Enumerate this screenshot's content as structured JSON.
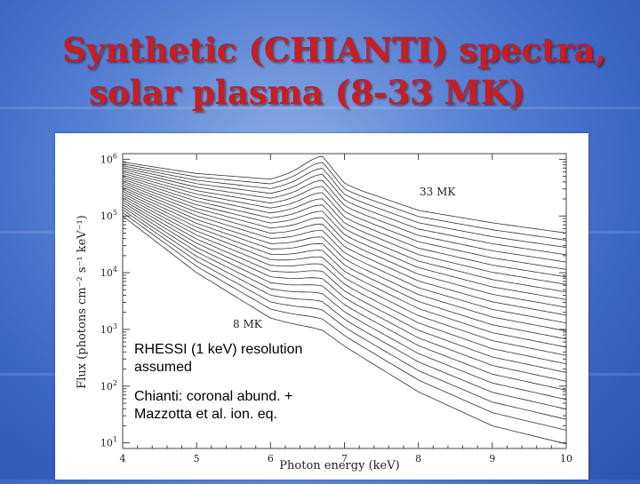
{
  "slide": {
    "title_line1": "Synthetic (CHIANTI) spectra,",
    "title_line2": "solar plasma (8-33 MK)"
  },
  "colors": {
    "title": "#d11a1a",
    "curve": "#333333",
    "background": "#4a74cc"
  },
  "annotations": {
    "resolution": [
      "RHESSI (1 keV) resolution",
      "assumed"
    ],
    "abundances": [
      "Chianti: coronal abund. +",
      "Mazzotta et al. ion. eq."
    ]
  },
  "chart_data": {
    "type": "line",
    "title": "",
    "xlabel": "Photon energy (keV)",
    "ylabel": "Flux (photons cm⁻² s⁻¹ keV⁻¹)",
    "xlim": [
      4,
      10
    ],
    "ylim_log10": [
      0.9,
      6.1
    ],
    "yscale": "log",
    "x_ticks": [
      "4",
      "5",
      "6",
      "7",
      "8",
      "9",
      "10"
    ],
    "y_ticks": [
      {
        "base": "10",
        "exp": "1"
      },
      {
        "base": "10",
        "exp": "2"
      },
      {
        "base": "10",
        "exp": "3"
      },
      {
        "base": "10",
        "exp": "4"
      },
      {
        "base": "10",
        "exp": "5"
      },
      {
        "base": "10",
        "exp": "6"
      }
    ],
    "curve_labels": {
      "hottest": "33 MK",
      "coolest": "8 MK"
    },
    "temperature_range_MK": [
      8,
      33
    ],
    "n_curves": 26,
    "note": "Family of thermal spectra; Fe line complex near 6.7 keV",
    "series": [
      {
        "name": "33 MK",
        "x": [
          4,
          5,
          6,
          6.7,
          7,
          8,
          9,
          10
        ],
        "log10_flux": [
          5.95,
          5.75,
          5.65,
          5.9,
          5.55,
          5.1,
          4.88,
          4.7
        ]
      },
      {
        "name": "8 MK",
        "x": [
          4,
          5,
          6,
          6.7,
          7,
          8,
          9,
          10
        ],
        "log10_flux": [
          5.0,
          4.0,
          3.2,
          2.95,
          2.7,
          1.9,
          1.3,
          0.98
        ]
      }
    ]
  }
}
